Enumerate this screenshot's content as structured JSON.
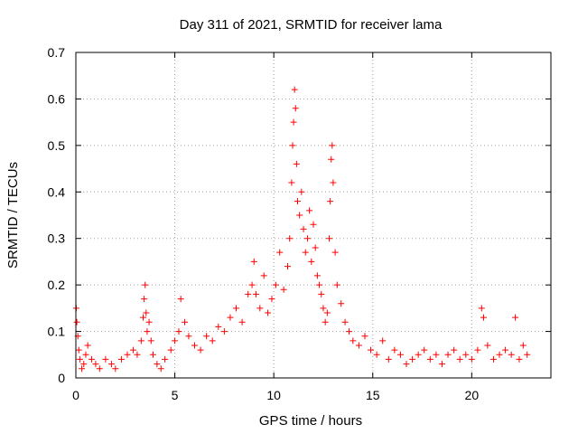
{
  "chart_data": {
    "type": "scatter",
    "title": "Day 311 of 2021, SRMTID for receiver lama",
    "xlabel": "GPS time / hours",
    "ylabel": "SRMTID / TECUs",
    "xlim": [
      0,
      24
    ],
    "ylim": [
      0,
      0.7
    ],
    "xticks": [
      0,
      5,
      10,
      15,
      20
    ],
    "xtick_labels": [
      "0",
      "5",
      "10",
      "15",
      "20"
    ],
    "yticks": [
      0,
      0.1,
      0.2,
      0.3,
      0.4,
      0.5,
      0.6,
      0.7
    ],
    "ytick_labels": [
      "0",
      "0.1",
      "0.2",
      "0.3",
      "0.4",
      "0.5",
      "0.6",
      "0.7"
    ],
    "grid": true,
    "marker": "plus",
    "color": "#ff0000",
    "series": [
      {
        "name": "SRMTID",
        "x": [
          0.02,
          0.05,
          0.1,
          0.15,
          0.2,
          0.3,
          0.4,
          0.5,
          0.6,
          0.8,
          1.0,
          1.2,
          1.5,
          1.8,
          2.0,
          2.3,
          2.6,
          2.9,
          3.1,
          3.3,
          3.4,
          3.45,
          3.5,
          3.55,
          3.6,
          3.7,
          3.8,
          3.9,
          4.1,
          4.3,
          4.5,
          4.8,
          5.0,
          5.2,
          5.3,
          5.5,
          5.7,
          6.0,
          6.3,
          6.6,
          6.9,
          7.2,
          7.5,
          7.8,
          8.1,
          8.4,
          8.7,
          8.9,
          9.0,
          9.1,
          9.3,
          9.5,
          9.7,
          9.9,
          10.1,
          10.3,
          10.5,
          10.7,
          10.8,
          10.9,
          10.95,
          11.0,
          11.05,
          11.1,
          11.15,
          11.2,
          11.3,
          11.4,
          11.5,
          11.6,
          11.7,
          11.8,
          11.9,
          12.0,
          12.1,
          12.2,
          12.3,
          12.4,
          12.5,
          12.6,
          12.7,
          12.8,
          12.85,
          12.9,
          12.95,
          13.0,
          13.1,
          13.2,
          13.4,
          13.6,
          13.8,
          14.0,
          14.3,
          14.6,
          14.9,
          15.2,
          15.5,
          15.8,
          16.1,
          16.4,
          16.7,
          17.0,
          17.3,
          17.6,
          17.9,
          18.2,
          18.5,
          18.8,
          19.1,
          19.4,
          19.7,
          20.0,
          20.3,
          20.5,
          20.6,
          20.8,
          21.1,
          21.4,
          21.7,
          22.0,
          22.2,
          22.4,
          22.6,
          22.8
        ],
        "y": [
          0.15,
          0.12,
          0.09,
          0.06,
          0.04,
          0.02,
          0.03,
          0.05,
          0.07,
          0.04,
          0.03,
          0.02,
          0.04,
          0.03,
          0.02,
          0.04,
          0.05,
          0.06,
          0.05,
          0.08,
          0.13,
          0.17,
          0.2,
          0.14,
          0.1,
          0.12,
          0.08,
          0.05,
          0.03,
          0.02,
          0.04,
          0.06,
          0.08,
          0.1,
          0.17,
          0.12,
          0.09,
          0.07,
          0.06,
          0.09,
          0.08,
          0.11,
          0.1,
          0.13,
          0.15,
          0.12,
          0.18,
          0.2,
          0.25,
          0.18,
          0.15,
          0.22,
          0.14,
          0.17,
          0.2,
          0.27,
          0.19,
          0.24,
          0.3,
          0.42,
          0.5,
          0.55,
          0.62,
          0.58,
          0.46,
          0.38,
          0.35,
          0.4,
          0.32,
          0.27,
          0.3,
          0.36,
          0.25,
          0.33,
          0.28,
          0.22,
          0.2,
          0.18,
          0.15,
          0.12,
          0.14,
          0.3,
          0.38,
          0.47,
          0.5,
          0.42,
          0.27,
          0.2,
          0.16,
          0.12,
          0.1,
          0.08,
          0.07,
          0.09,
          0.06,
          0.05,
          0.08,
          0.04,
          0.06,
          0.05,
          0.03,
          0.04,
          0.05,
          0.06,
          0.04,
          0.05,
          0.03,
          0.05,
          0.06,
          0.04,
          0.05,
          0.04,
          0.06,
          0.15,
          0.13,
          0.07,
          0.04,
          0.05,
          0.06,
          0.05,
          0.13,
          0.04,
          0.07,
          0.05
        ]
      }
    ]
  }
}
